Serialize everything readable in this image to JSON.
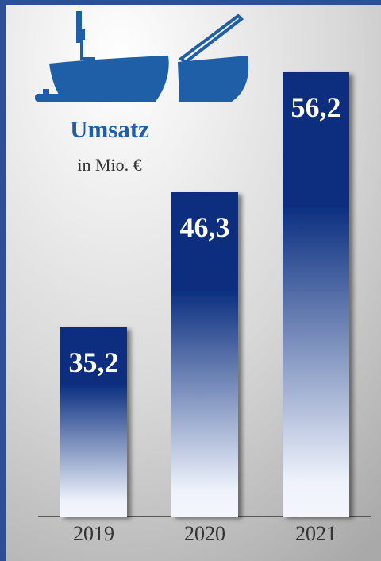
{
  "chart_data": {
    "type": "bar",
    "title": "Umsatz",
    "subtitle": "in Mio. €",
    "categories": [
      "2019",
      "2020",
      "2021"
    ],
    "values": [
      35.2,
      46.3,
      56.2
    ],
    "value_labels": [
      "35,2",
      "46,3",
      "56,2"
    ],
    "color": "#0a2e7f",
    "ylim": [
      19.6,
      62
    ]
  }
}
